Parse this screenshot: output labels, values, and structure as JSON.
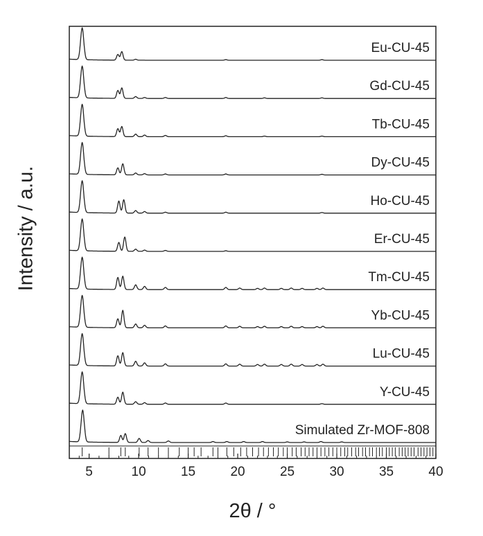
{
  "chart_data": {
    "type": "line",
    "title": "",
    "xlabel": "2θ / °",
    "ylabel": "Intensity / a.u.",
    "xlim": [
      3,
      40
    ],
    "xticks": [
      5,
      10,
      15,
      20,
      25,
      30,
      35,
      40
    ],
    "xtick_labels": [
      "5",
      "10",
      "15",
      "20",
      "25",
      "30",
      "35",
      "40"
    ],
    "yticks_shown": false,
    "grid": false,
    "series": [
      {
        "name": "Eu-CU-45",
        "peaks": [
          [
            4.3,
            1.0
          ],
          [
            7.9,
            0.18
          ],
          [
            8.3,
            0.27
          ],
          [
            9.7,
            0.03
          ],
          [
            18.8,
            0.02
          ],
          [
            28.5,
            0.02
          ]
        ]
      },
      {
        "name": "Gd-CU-45",
        "peaks": [
          [
            4.3,
            1.0
          ],
          [
            7.9,
            0.25
          ],
          [
            8.3,
            0.33
          ],
          [
            9.7,
            0.06
          ],
          [
            10.6,
            0.03
          ],
          [
            12.7,
            0.03
          ],
          [
            18.8,
            0.03
          ],
          [
            22.7,
            0.02
          ],
          [
            28.5,
            0.02
          ]
        ]
      },
      {
        "name": "Tb-CU-45",
        "peaks": [
          [
            4.3,
            1.0
          ],
          [
            7.9,
            0.25
          ],
          [
            8.3,
            0.32
          ],
          [
            9.7,
            0.08
          ],
          [
            10.6,
            0.05
          ],
          [
            12.7,
            0.04
          ],
          [
            18.8,
            0.03
          ],
          [
            22.7,
            0.02
          ],
          [
            28.5,
            0.02
          ]
        ]
      },
      {
        "name": "Dy-CU-45",
        "peaks": [
          [
            4.3,
            1.0
          ],
          [
            7.9,
            0.22
          ],
          [
            8.4,
            0.35
          ],
          [
            9.7,
            0.06
          ],
          [
            10.6,
            0.04
          ],
          [
            12.7,
            0.03
          ],
          [
            18.8,
            0.03
          ],
          [
            28.5,
            0.02
          ]
        ]
      },
      {
        "name": "Ho-CU-45",
        "peaks": [
          [
            4.3,
            1.0
          ],
          [
            8.0,
            0.38
          ],
          [
            8.5,
            0.42
          ],
          [
            9.7,
            0.08
          ],
          [
            10.6,
            0.05
          ],
          [
            12.7,
            0.03
          ],
          [
            18.8,
            0.03
          ],
          [
            28.5,
            0.02
          ]
        ]
      },
      {
        "name": "Er-CU-45",
        "peaks": [
          [
            4.3,
            1.0
          ],
          [
            8.0,
            0.28
          ],
          [
            8.6,
            0.45
          ],
          [
            9.7,
            0.07
          ],
          [
            10.6,
            0.04
          ],
          [
            12.7,
            0.03
          ],
          [
            18.8,
            0.02
          ]
        ]
      },
      {
        "name": "Tm-CU-45",
        "peaks": [
          [
            4.3,
            1.0
          ],
          [
            7.9,
            0.38
          ],
          [
            8.4,
            0.42
          ],
          [
            9.7,
            0.15
          ],
          [
            10.6,
            0.1
          ],
          [
            12.7,
            0.07
          ],
          [
            18.8,
            0.07
          ],
          [
            20.2,
            0.05
          ],
          [
            22.0,
            0.04
          ],
          [
            22.7,
            0.05
          ],
          [
            24.4,
            0.04
          ],
          [
            25.4,
            0.05
          ],
          [
            26.5,
            0.04
          ],
          [
            28.0,
            0.04
          ],
          [
            28.6,
            0.05
          ]
        ]
      },
      {
        "name": "Yb-CU-45",
        "peaks": [
          [
            4.3,
            1.0
          ],
          [
            7.9,
            0.28
          ],
          [
            8.4,
            0.55
          ],
          [
            9.7,
            0.12
          ],
          [
            10.6,
            0.08
          ],
          [
            12.7,
            0.06
          ],
          [
            18.8,
            0.06
          ],
          [
            20.2,
            0.05
          ],
          [
            22.0,
            0.04
          ],
          [
            22.7,
            0.05
          ],
          [
            24.4,
            0.04
          ],
          [
            25.4,
            0.05
          ],
          [
            26.5,
            0.04
          ],
          [
            28.0,
            0.04
          ],
          [
            28.6,
            0.05
          ]
        ]
      },
      {
        "name": "Lu-CU-45",
        "peaks": [
          [
            4.3,
            1.0
          ],
          [
            7.9,
            0.32
          ],
          [
            8.4,
            0.42
          ],
          [
            9.7,
            0.15
          ],
          [
            10.6,
            0.1
          ],
          [
            12.7,
            0.07
          ],
          [
            18.8,
            0.07
          ],
          [
            20.2,
            0.06
          ],
          [
            22.0,
            0.05
          ],
          [
            22.7,
            0.06
          ],
          [
            24.4,
            0.05
          ],
          [
            25.4,
            0.06
          ],
          [
            26.5,
            0.05
          ],
          [
            28.0,
            0.05
          ],
          [
            28.6,
            0.06
          ]
        ]
      },
      {
        "name": "Y-CU-45",
        "peaks": [
          [
            4.3,
            1.0
          ],
          [
            7.9,
            0.22
          ],
          [
            8.4,
            0.38
          ],
          [
            9.7,
            0.08
          ],
          [
            10.6,
            0.05
          ],
          [
            12.7,
            0.04
          ],
          [
            18.8,
            0.04
          ],
          [
            28.5,
            0.02
          ]
        ]
      },
      {
        "name": "Simulated Zr-MOF-808",
        "peaks": [
          [
            4.35,
            1.0
          ],
          [
            8.2,
            0.22
          ],
          [
            8.65,
            0.28
          ],
          [
            10.05,
            0.13
          ],
          [
            10.95,
            0.06
          ],
          [
            13.0,
            0.05
          ],
          [
            17.5,
            0.03
          ],
          [
            18.9,
            0.03
          ],
          [
            20.6,
            0.03
          ],
          [
            22.5,
            0.03
          ],
          [
            25.0,
            0.02
          ],
          [
            26.7,
            0.02
          ],
          [
            28.4,
            0.03
          ],
          [
            30.5,
            0.02
          ]
        ]
      }
    ],
    "reflections_2theta": [
      4.3,
      7.0,
      8.2,
      8.65,
      10.05,
      10.95,
      12.0,
      13.0,
      14.1,
      15.0,
      15.6,
      16.3,
      17.5,
      18.0,
      18.9,
      19.6,
      20.3,
      20.9,
      21.5,
      22.1,
      22.6,
      23.1,
      23.6,
      24.1,
      24.6,
      25.0,
      25.5,
      25.9,
      26.4,
      26.8,
      27.2,
      27.6,
      28.0,
      28.4,
      28.8,
      29.2,
      29.6,
      30.0,
      30.4,
      30.8,
      31.1,
      31.5,
      31.9,
      32.2,
      32.6,
      32.9,
      33.3,
      33.6,
      34.0,
      34.3,
      34.6,
      35.0,
      35.3,
      35.6,
      35.9,
      36.3,
      36.6,
      36.9,
      37.2,
      37.5,
      37.8,
      38.2,
      38.5,
      38.8,
      39.1,
      39.4,
      39.7
    ]
  }
}
